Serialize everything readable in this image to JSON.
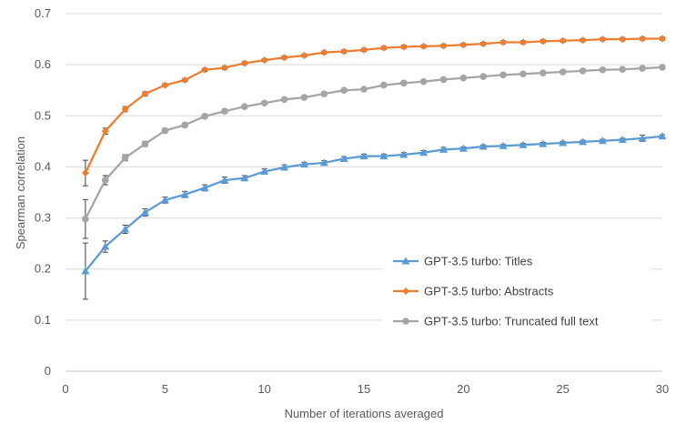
{
  "chart_data": {
    "type": "line",
    "title": "",
    "xlabel": "Number of iterations averaged",
    "ylabel": "Spearman correlation",
    "xlim": [
      0,
      30
    ],
    "ylim": [
      0,
      0.7
    ],
    "x_ticks": [
      0,
      5,
      10,
      15,
      20,
      25,
      30
    ],
    "y_ticks": [
      0,
      0.1,
      0.2,
      0.3,
      0.4,
      0.5,
      0.6,
      0.7
    ],
    "x_tick_labels": [
      "0",
      "5",
      "10",
      "15",
      "20",
      "25",
      "30"
    ],
    "y_tick_labels": [
      "0",
      "0.1",
      "0.2",
      "0.3",
      "0.4",
      "0.5",
      "0.6",
      "0.7"
    ],
    "grid": "horizontal",
    "legend_position": "bottom-right",
    "x": [
      1,
      2,
      3,
      4,
      5,
      6,
      7,
      8,
      9,
      10,
      11,
      12,
      13,
      14,
      15,
      16,
      17,
      18,
      19,
      20,
      21,
      22,
      23,
      24,
      25,
      26,
      27,
      28,
      29,
      30
    ],
    "series": [
      {
        "name": "GPT-3.5 turbo: Titles",
        "color": "#5b9bd5",
        "marker": "triangle",
        "values": [
          0.196,
          0.244,
          0.278,
          0.311,
          0.335,
          0.346,
          0.359,
          0.374,
          0.378,
          0.391,
          0.399,
          0.405,
          0.408,
          0.416,
          0.421,
          0.421,
          0.424,
          0.428,
          0.434,
          0.436,
          0.44,
          0.441,
          0.443,
          0.445,
          0.447,
          0.449,
          0.451,
          0.453,
          0.456,
          0.46
        ],
        "errors": [
          0.055,
          0.011,
          0.008,
          0.007,
          0.006,
          0.006,
          0.006,
          0.006,
          0.005,
          0.005,
          0.005,
          0.004,
          0.004,
          0.004,
          0.004,
          0.004,
          0.004,
          0.004,
          0.004,
          0.003,
          0.003,
          0.003,
          0.003,
          0.003,
          0.003,
          0.003,
          0.003,
          0.003,
          0.006,
          0.003
        ]
      },
      {
        "name": "GPT-3.5 turbo: Abstracts",
        "color": "#ed7d31",
        "marker": "diamond",
        "values": [
          0.388,
          0.47,
          0.513,
          0.543,
          0.56,
          0.57,
          0.59,
          0.594,
          0.603,
          0.609,
          0.614,
          0.618,
          0.624,
          0.626,
          0.629,
          0.633,
          0.635,
          0.636,
          0.637,
          0.639,
          0.641,
          0.644,
          0.644,
          0.646,
          0.647,
          0.648,
          0.65,
          0.65,
          0.651,
          0.651
        ],
        "errors": [
          0.025,
          0.006,
          0.005,
          0.004,
          0.003,
          0.003,
          0.003,
          0.003,
          0.003,
          0.003,
          0.003,
          0.003,
          0.003,
          0.003,
          0.003,
          0.003,
          0.003,
          0.003,
          0.003,
          0.003,
          0.003,
          0.003,
          0.003,
          0.003,
          0.003,
          0.003,
          0.003,
          0.003,
          0.003,
          0.003
        ]
      },
      {
        "name": "GPT-3.5 turbo: Truncated full text",
        "color": "#a5a5a5",
        "marker": "circle",
        "values": [
          0.298,
          0.374,
          0.418,
          0.445,
          0.471,
          0.482,
          0.499,
          0.509,
          0.518,
          0.525,
          0.532,
          0.536,
          0.543,
          0.55,
          0.552,
          0.56,
          0.564,
          0.567,
          0.571,
          0.574,
          0.577,
          0.58,
          0.582,
          0.584,
          0.586,
          0.588,
          0.59,
          0.591,
          0.593,
          0.595
        ],
        "errors": [
          0.038,
          0.009,
          0.006,
          0.005,
          0.004,
          0.004,
          0.004,
          0.004,
          0.003,
          0.003,
          0.003,
          0.003,
          0.003,
          0.003,
          0.003,
          0.003,
          0.003,
          0.003,
          0.003,
          0.003,
          0.003,
          0.003,
          0.003,
          0.003,
          0.003,
          0.003,
          0.003,
          0.003,
          0.003,
          0.003
        ]
      }
    ]
  }
}
